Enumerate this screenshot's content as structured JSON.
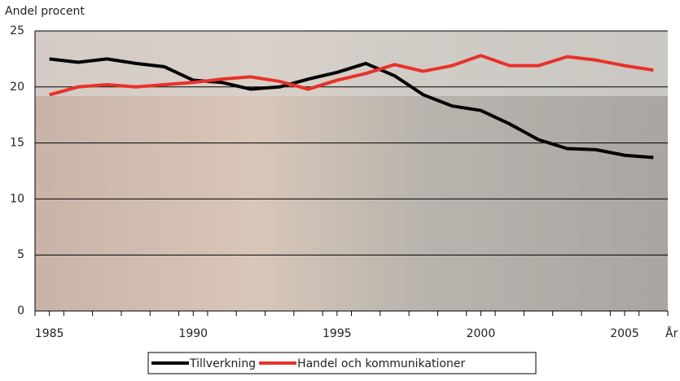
{
  "chart_data": {
    "type": "line",
    "y_label": "Andel procent",
    "x_label": "År",
    "x": [
      1985,
      1986,
      1987,
      1988,
      1989,
      1990,
      1991,
      1992,
      1993,
      1994,
      1995,
      1996,
      1997,
      1998,
      1999,
      2000,
      2001,
      2002,
      2003,
      2004,
      2005,
      2006
    ],
    "series": [
      {
        "name": "Tillverkning",
        "color": "#000000",
        "values": [
          22.5,
          22.2,
          22.5,
          22.1,
          21.8,
          20.6,
          20.4,
          19.8,
          20.0,
          20.7,
          21.3,
          22.1,
          21.0,
          19.3,
          18.3,
          17.9,
          16.7,
          15.3,
          14.5,
          14.4,
          13.9,
          13.7
        ]
      },
      {
        "name": "Handel och kommunikationer",
        "color": "#e8312a",
        "values": [
          19.3,
          20.0,
          20.2,
          20.0,
          20.2,
          20.4,
          20.7,
          20.9,
          20.5,
          19.8,
          20.6,
          21.2,
          22.0,
          21.4,
          21.9,
          22.8,
          21.9,
          21.9,
          22.7,
          22.4,
          21.9,
          21.5
        ]
      }
    ],
    "xlim": [
      1984.5,
      2006.5
    ],
    "xticks": [
      1985,
      1990,
      1995,
      2000,
      2005
    ],
    "ylim": [
      0,
      25
    ],
    "yticks": [
      0,
      5,
      10,
      15,
      20,
      25
    ],
    "grid": true
  }
}
